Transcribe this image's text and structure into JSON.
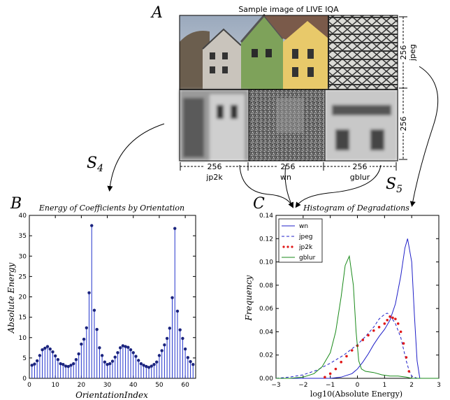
{
  "figure": {
    "panel_a": {
      "letter": "A",
      "title": "Sample image of LIVE IQA",
      "size_label": "256",
      "bottom_labels": [
        "jp2k",
        "wn",
        "gblur"
      ],
      "right_labels": [
        "jpeg"
      ],
      "bottom_dims": [
        "256",
        "256",
        "256"
      ],
      "right_dims": [
        "256",
        "256"
      ]
    },
    "s4": "S",
    "s4_sub": "4",
    "s5": "S",
    "s5_sub": "5",
    "panel_b": {
      "letter": "B",
      "title": "Energy of Coefficients by Orientation"
    },
    "panel_c": {
      "letter": "C",
      "title": "Histogram of Degradations"
    }
  },
  "chart_data": [
    {
      "type": "stem",
      "title": "Energy of Coefficients by Orientation",
      "xlabel": "OrientationIndex",
      "ylabel": "Absolute Energy",
      "xlim": [
        0,
        64
      ],
      "ylim": [
        0,
        40
      ],
      "xticks": [
        "0",
        "10",
        "20",
        "30",
        "40",
        "50",
        "60"
      ],
      "yticks": [
        "0",
        "5",
        "10",
        "15",
        "20",
        "25",
        "30",
        "35",
        "40"
      ],
      "x": [
        1,
        2,
        3,
        4,
        5,
        6,
        7,
        8,
        9,
        10,
        11,
        12,
        13,
        14,
        15,
        16,
        17,
        18,
        19,
        20,
        21,
        22,
        23,
        24,
        25,
        26,
        27,
        28,
        29,
        30,
        31,
        32,
        33,
        34,
        35,
        36,
        37,
        38,
        39,
        40,
        41,
        42,
        43,
        44,
        45,
        46,
        47,
        48,
        49,
        50,
        51,
        52,
        53,
        54,
        55,
        56,
        57,
        58,
        59,
        60,
        61,
        62,
        63
      ],
      "values": [
        3.2,
        3.5,
        4.3,
        5.6,
        7.0,
        7.4,
        7.8,
        7.2,
        6.5,
        5.5,
        4.6,
        3.6,
        3.4,
        3.0,
        2.9,
        3.2,
        3.6,
        4.6,
        6.0,
        8.4,
        9.6,
        12.4,
        21.0,
        37.5,
        16.7,
        12.0,
        7.5,
        5.6,
        4.0,
        3.4,
        3.6,
        4.2,
        5.2,
        6.3,
        7.5,
        8.0,
        7.8,
        7.6,
        7.0,
        6.3,
        5.4,
        4.4,
        3.6,
        3.2,
        2.9,
        2.7,
        3.0,
        3.4,
        4.0,
        5.6,
        6.8,
        8.2,
        9.8,
        12.3,
        19.8,
        36.8,
        16.5,
        11.9,
        9.8,
        7.2,
        5.1,
        4.1,
        3.4
      ]
    },
    {
      "type": "line",
      "title": "Histogram of Degradations",
      "xlabel": "log10(Absolute Energy)",
      "ylabel": "Frequency",
      "xlim": [
        -3,
        3
      ],
      "ylim": [
        0,
        0.14
      ],
      "xticks": [
        "-3",
        "-2",
        "-1",
        "0",
        "1",
        "2",
        "3"
      ],
      "yticks": [
        "0.00",
        "0.02",
        "0.04",
        "0.06",
        "0.08",
        "0.10",
        "0.12",
        "0.14"
      ],
      "legend_position": "top-left",
      "series": [
        {
          "name": "wn",
          "color": "#1f1fc8",
          "style": "solid",
          "x": [
            -3,
            -2.5,
            -2,
            -1.5,
            -1,
            -0.6,
            -0.2,
            0,
            0.2,
            0.4,
            0.6,
            0.8,
            1.0,
            1.2,
            1.4,
            1.6,
            1.75,
            1.85,
            2.0,
            2.1,
            2.2,
            2.3,
            3
          ],
          "y": [
            0,
            0,
            0,
            0,
            0,
            0.001,
            0.004,
            0.008,
            0.014,
            0.021,
            0.029,
            0.036,
            0.042,
            0.05,
            0.064,
            0.088,
            0.112,
            0.12,
            0.1,
            0.055,
            0.015,
            0,
            0
          ]
        },
        {
          "name": "jpeg",
          "color": "#1f1fc8",
          "style": "dashed",
          "x": [
            -3,
            -2.5,
            -2,
            -1.5,
            -1,
            -0.5,
            0,
            0.3,
            0.6,
            0.8,
            1.0,
            1.1,
            1.2,
            1.4,
            1.6,
            1.7,
            1.8,
            1.9,
            2.0,
            2.2,
            3
          ],
          "y": [
            0,
            0.001,
            0.003,
            0.007,
            0.013,
            0.02,
            0.029,
            0.036,
            0.044,
            0.051,
            0.055,
            0.056,
            0.054,
            0.047,
            0.035,
            0.025,
            0.015,
            0.007,
            0.002,
            0,
            0
          ]
        },
        {
          "name": "jp2k",
          "color": "#e01818",
          "style": "dotted",
          "x": [
            -1.2,
            -1.0,
            -0.8,
            -0.6,
            -0.4,
            -0.2,
            0,
            0.2,
            0.4,
            0.6,
            0.8,
            1.0,
            1.1,
            1.2,
            1.3,
            1.4,
            1.5,
            1.6,
            1.7,
            1.8,
            1.9
          ],
          "y": [
            0.001,
            0.004,
            0.008,
            0.014,
            0.019,
            0.024,
            0.028,
            0.033,
            0.037,
            0.041,
            0.044,
            0.047,
            0.05,
            0.053,
            0.052,
            0.051,
            0.047,
            0.04,
            0.03,
            0.018,
            0.006
          ]
        },
        {
          "name": "gblur",
          "color": "#1a8a1a",
          "style": "solid",
          "x": [
            -3,
            -2.5,
            -2,
            -1.6,
            -1.3,
            -1.0,
            -0.8,
            -0.6,
            -0.45,
            -0.3,
            -0.15,
            -0.05,
            0.05,
            0.15,
            0.3,
            0.6,
            0.9,
            1.2,
            1.5,
            1.8,
            2.0,
            3
          ],
          "y": [
            0,
            0.0,
            0.001,
            0.004,
            0.01,
            0.022,
            0.04,
            0.07,
            0.097,
            0.105,
            0.08,
            0.04,
            0.015,
            0.008,
            0.006,
            0.005,
            0.003,
            0.002,
            0.002,
            0.001,
            0,
            0
          ]
        }
      ]
    }
  ]
}
